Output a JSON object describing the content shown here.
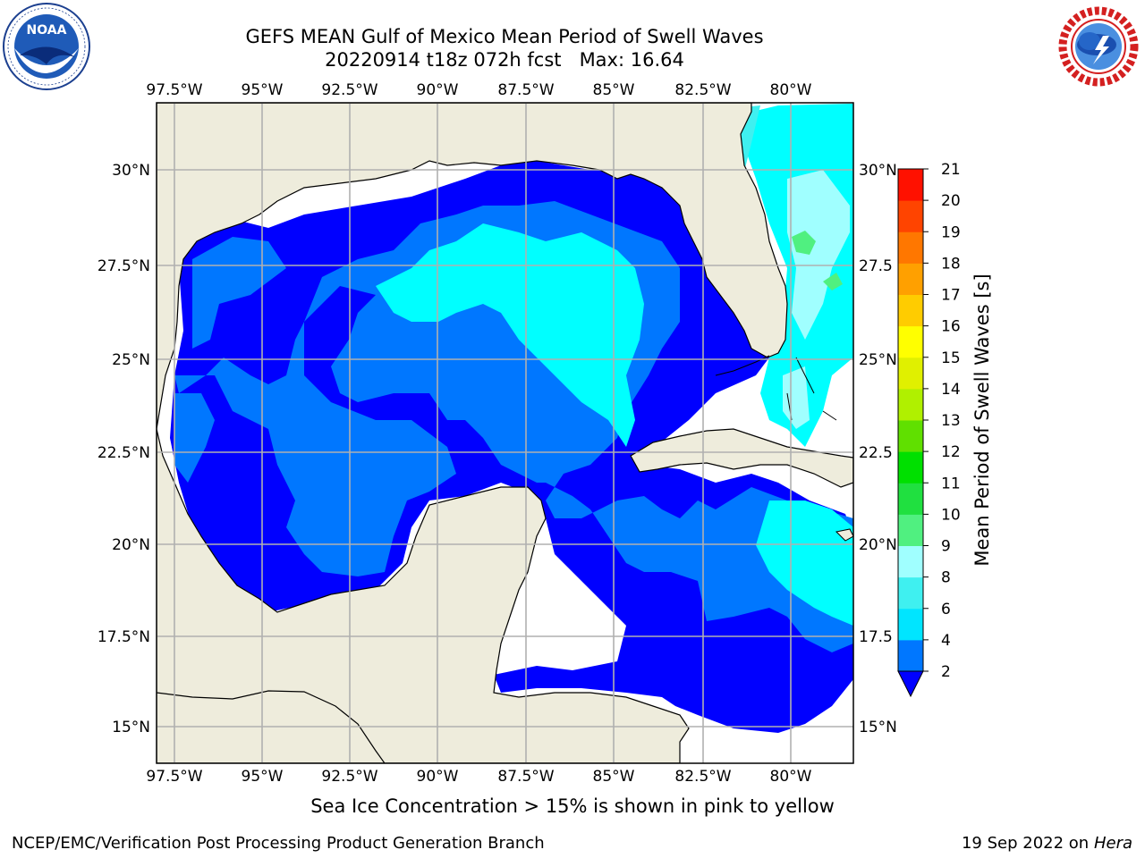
{
  "title": {
    "line1": "GEFS MEAN Gulf of Mexico Mean Period of Swell Waves",
    "line2_date": "20220914 t18z 072h fcst",
    "line2_max": "Max: 16.64"
  },
  "logos": {
    "left": {
      "icon": "noaa-logo-icon",
      "text": "NOAA"
    },
    "right": {
      "icon": "nws-logo-icon",
      "text": "NATIONAL WEATHER SERVICE"
    }
  },
  "map": {
    "lon_labels": [
      "97.5°W",
      "95°W",
      "92.5°W",
      "90°W",
      "87.5°W",
      "85°W",
      "82.5°W",
      "80°W"
    ],
    "lat_labels_left": [
      "30°N",
      "27.5°N",
      "25°N",
      "22.5°N",
      "20°N",
      "17.5°N",
      "15°N"
    ],
    "lat_labels_right": [
      "30°N",
      "27.5",
      "25°N",
      "22.5",
      "20°N",
      "17.5",
      "15°N"
    ],
    "land_color": "#eeecdc",
    "grid_color": "#b0b0b0"
  },
  "colorbar": {
    "label": "Mean Period of Swell Waves [s]",
    "ticks": [
      "2",
      "4",
      "6",
      "8",
      "9",
      "10",
      "11",
      "12",
      "13",
      "14",
      "15",
      "16",
      "17",
      "18",
      "19",
      "20",
      "21"
    ],
    "colors": [
      "#0000ff",
      "#0077ff",
      "#00e5ff",
      "#3ff0f0",
      "#a0ffff",
      "#50f080",
      "#20e040",
      "#00e000",
      "#60e000",
      "#b0f000",
      "#e0f000",
      "#ffff00",
      "#ffcc00",
      "#ffa000",
      "#ff7700",
      "#ff4400",
      "#ff1100",
      "#ff0000"
    ]
  },
  "note": "Sea Ice Concentration > 15% is shown in pink to yellow",
  "footer": {
    "left": "NCEP/EMC/Verification Post Processing Product Generation Branch",
    "date": "19 Sep 2022 on",
    "machine": "Hera"
  }
}
